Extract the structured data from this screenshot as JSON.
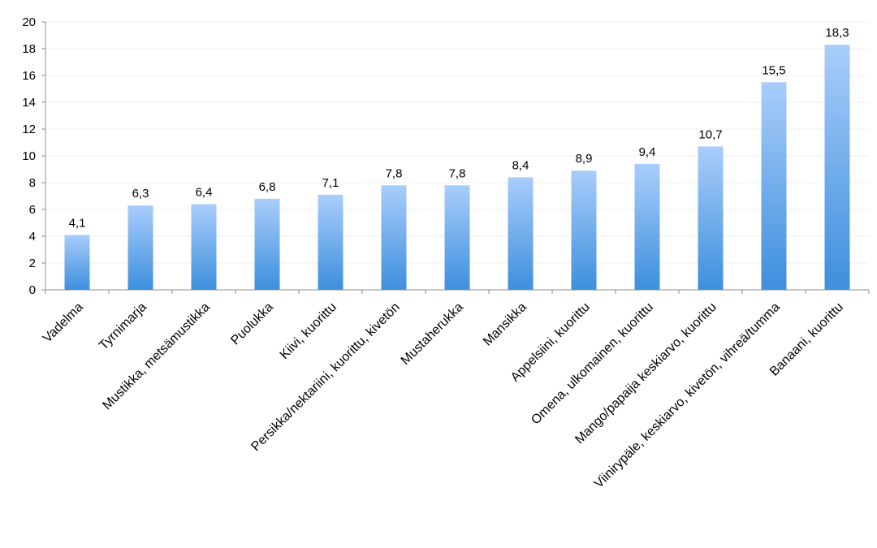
{
  "chart_data": {
    "type": "bar",
    "title": "",
    "xlabel": "",
    "ylabel": "",
    "ylim": [
      0,
      20
    ],
    "yticks": [
      0,
      2,
      4,
      6,
      8,
      10,
      12,
      14,
      16,
      18,
      20
    ],
    "ytick_labels": [
      "0",
      "2",
      "4",
      "6",
      "8",
      "10",
      "12",
      "14",
      "16",
      "18",
      "20"
    ],
    "grid": true,
    "legend": "none",
    "categories": [
      "Vadelma",
      "Tyrnimarja",
      "Mustikka, metsämustikka",
      "Puolukka",
      "Kiivi, kuorittu",
      "Persikka/nektariini, kuorittu, kivetön",
      "Mustaherukka",
      "Mansikka",
      "Appelsiini, kuorittu",
      "Omena, ulkomainen, kuorittu",
      "Mango/papaija keskiarvo, kuorittu",
      "Viinirypäle, keskiarvo, kivetön, vihreä/tumma",
      "Banaani, kuorittu"
    ],
    "values": [
      4.1,
      6.3,
      6.4,
      6.8,
      7.1,
      7.8,
      7.8,
      8.4,
      8.9,
      9.4,
      10.7,
      15.5,
      18.3
    ],
    "data_labels": [
      "4,1",
      "6,3",
      "6,4",
      "6,8",
      "7,1",
      "7,8",
      "7,8",
      "8,4",
      "8,9",
      "9,4",
      "10,7",
      "15,5",
      "18,3"
    ],
    "colors": {
      "bar_top": "#a9cdfb",
      "bar_bottom": "#3d8fdd",
      "axis": "#8c8c8c",
      "grid": "#efefef"
    }
  }
}
